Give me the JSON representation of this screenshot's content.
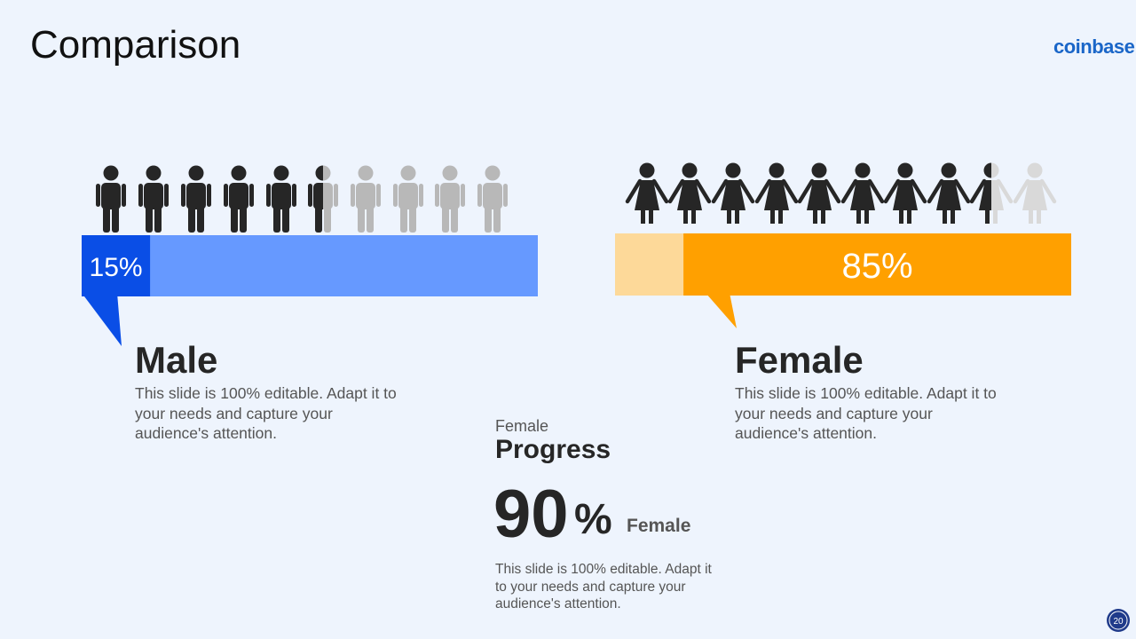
{
  "header": {
    "title": "Comparison",
    "brand": "coinbase"
  },
  "panels": [
    {
      "value": 15,
      "value_label": "15%",
      "title": "Male",
      "text": "This slide is 100% editable. Adapt it to your needs and capture your audience's attention."
    },
    {
      "value": 85,
      "value_label": "85%",
      "title": "Female",
      "text": "This slide is 100% editable. Adapt it to your needs and capture your audience's attention."
    }
  ],
  "progress": {
    "kicker": "Female",
    "title": "Progress",
    "value": 90,
    "unit": "%",
    "label": "Female",
    "text": "This slide is 100% editable. Adapt it to your needs and capture your audience's attention."
  },
  "page_number": "20"
}
